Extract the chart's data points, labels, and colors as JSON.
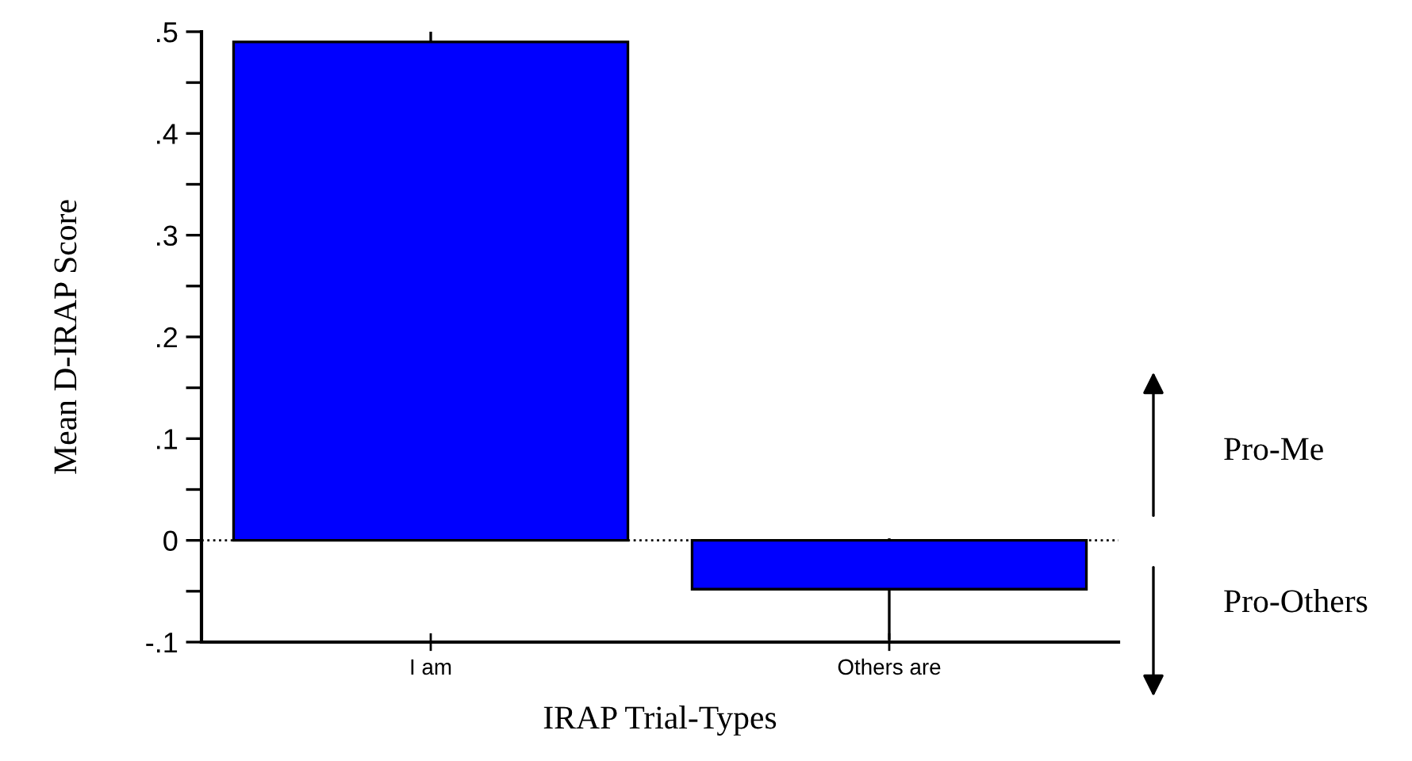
{
  "chart_data": {
    "type": "bar",
    "xlabel": "IRAP Trial-Types",
    "ylabel": "Mean D-IRAP Score",
    "categories": [
      "I am",
      "Others are"
    ],
    "values": [
      0.49,
      -0.048
    ],
    "errors": [
      0.01,
      0.05
    ],
    "color": "#0000ff",
    "ylim": [
      -0.1,
      0.5
    ],
    "yticks": [
      {
        "value": -0.1,
        "label": "-.1"
      },
      {
        "value": -0.05,
        "label": null
      },
      0,
      {
        "value": 0.05,
        "label": null
      },
      {
        "value": 0.1,
        "label": ".1"
      },
      {
        "value": 0.15,
        "label": null
      },
      {
        "value": 0.2,
        "label": ".2"
      },
      {
        "value": 0.25,
        "label": null
      },
      {
        "value": 0.3,
        "label": ".3"
      },
      {
        "value": 0.35,
        "label": null
      },
      {
        "value": 0.4,
        "label": ".4"
      },
      {
        "value": 0.45,
        "label": null
      },
      {
        "value": 0.5,
        "label": ".5"
      }
    ],
    "ref_lines": [
      {
        "axis": "y",
        "value": 0,
        "color": "#000000",
        "line_style": "dotted"
      }
    ],
    "annotations": [
      "Pro-Me",
      "Pro-Others"
    ],
    "grid": false,
    "legend": false
  }
}
